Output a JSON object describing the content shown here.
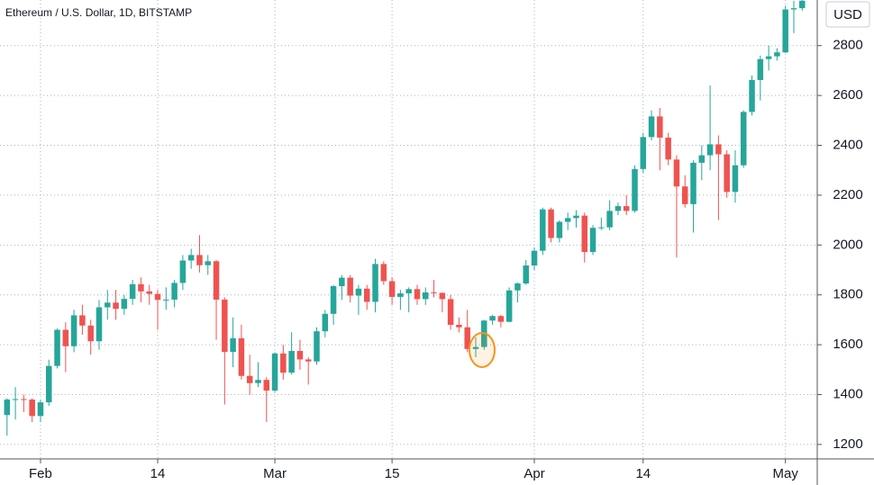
{
  "chart_data": {
    "type": "candlestick",
    "title": "Ethereum / U.S. Dollar, 1D, BITSTAMP",
    "currency": "USD",
    "up_color": "#26a69a",
    "down_color": "#ef5350",
    "grid": true,
    "xlim": [
      -4.84,
      92.8
    ],
    "ylim": [
      1142,
      2983
    ],
    "xticks": [
      {
        "value": 0,
        "label": "Feb"
      },
      14,
      {
        "value": 28,
        "label": "Mar"
      },
      {
        "value": 42,
        "label": "15"
      },
      {
        "value": 59,
        "label": "Apr"
      },
      {
        "value": 72,
        "label": "14"
      },
      {
        "value": 89,
        "label": "May"
      }
    ],
    "yticks": [
      1200,
      1400,
      1600,
      1800,
      2000,
      2200,
      2400,
      2600,
      2800
    ],
    "x": [
      -4,
      -3,
      -2,
      -1,
      0,
      1,
      2,
      3,
      4,
      5,
      6,
      7,
      8,
      9,
      10,
      11,
      12,
      13,
      14,
      15,
      16,
      17,
      18,
      19,
      20,
      21,
      22,
      23,
      24,
      25,
      26,
      27,
      28,
      29,
      30,
      31,
      32,
      33,
      34,
      35,
      36,
      37,
      38,
      39,
      40,
      41,
      42,
      43,
      44,
      45,
      46,
      47,
      48,
      49,
      50,
      51,
      52,
      53,
      54,
      55,
      56,
      57,
      58,
      59,
      60,
      61,
      62,
      63,
      64,
      65,
      66,
      67,
      68,
      69,
      70,
      71,
      72,
      73,
      74,
      75,
      76,
      77,
      78,
      79,
      80,
      81,
      82,
      83,
      84,
      85,
      86,
      87,
      88,
      89,
      90,
      91
    ],
    "open": [
      1318,
      1380,
      1382,
      1380,
      1314,
      1369,
      1515,
      1660,
      1594,
      1718,
      1677,
      1614,
      1750,
      1769,
      1744,
      1784,
      1843,
      1814,
      1804,
      1780,
      1781,
      1848,
      1938,
      1960,
      1919,
      1935,
      1781,
      1571,
      1626,
      1475,
      1446,
      1459,
      1416,
      1565,
      1488,
      1575,
      1541,
      1533,
      1654,
      1724,
      1835,
      1869,
      1797,
      1825,
      1772,
      1924,
      1855,
      1792,
      1806,
      1823,
      1783,
      1810,
      1808,
      1783,
      1680,
      1670,
      1583,
      1591,
      1697,
      1715,
      1692,
      1818,
      1846,
      1918,
      1977,
      2143,
      2028,
      2093,
      2108,
      2118,
      1972,
      2069,
      2071,
      2137,
      2156,
      2137,
      2305,
      2433,
      2516,
      2431,
      2343,
      2235,
      2164,
      2330,
      2360,
      2404,
      2364,
      2213,
      2320,
      2534,
      2662,
      2746,
      2757,
      2773,
      2945,
      2950
    ],
    "high": [
      1385,
      1430,
      1400,
      1385,
      1380,
      1540,
      1665,
      1690,
      1740,
      1760,
      1700,
      1780,
      1820,
      1820,
      1800,
      1860,
      1870,
      1840,
      1820,
      1830,
      1860,
      1960,
      1985,
      2040,
      1960,
      1940,
      1790,
      1710,
      1680,
      1560,
      1530,
      1470,
      1570,
      1600,
      1650,
      1620,
      1550,
      1670,
      1740,
      1840,
      1880,
      1880,
      1840,
      1840,
      1945,
      1935,
      1870,
      1820,
      1830,
      1840,
      1830,
      1860,
      1810,
      1800,
      1710,
      1740,
      1630,
      1700,
      1720,
      1720,
      1830,
      1850,
      1940,
      1990,
      2150,
      2150,
      2100,
      2130,
      2140,
      2130,
      2080,
      2110,
      2180,
      2170,
      2200,
      2320,
      2450,
      2540,
      2550,
      2450,
      2360,
      2280,
      2340,
      2400,
      2640,
      2440,
      2380,
      2380,
      2540,
      2680,
      2760,
      2800,
      2790,
      2960,
      2980,
      2990
    ],
    "low": [
      1235,
      1300,
      1330,
      1290,
      1290,
      1355,
      1505,
      1490,
      1570,
      1640,
      1560,
      1580,
      1700,
      1700,
      1720,
      1760,
      1770,
      1760,
      1660,
      1740,
      1750,
      1820,
      1905,
      1890,
      1880,
      1620,
      1360,
      1510,
      1460,
      1400,
      1430,
      1290,
      1410,
      1460,
      1480,
      1500,
      1440,
      1520,
      1630,
      1680,
      1780,
      1770,
      1720,
      1740,
      1730,
      1840,
      1760,
      1740,
      1730,
      1760,
      1760,
      1790,
      1730,
      1660,
      1650,
      1570,
      1550,
      1580,
      1680,
      1670,
      1690,
      1770,
      1840,
      1900,
      1960,
      2010,
      2010,
      2060,
      2070,
      1930,
      1960,
      2060,
      2060,
      2120,
      2120,
      2130,
      2290,
      2420,
      2300,
      2320,
      1950,
      2150,
      2050,
      2260,
      2300,
      2100,
      2190,
      2170,
      2310,
      2520,
      2580,
      2700,
      2740,
      2770,
      2850,
      2940
    ],
    "close": [
      1380,
      1382,
      1380,
      1314,
      1369,
      1515,
      1660,
      1594,
      1718,
      1677,
      1614,
      1750,
      1769,
      1744,
      1784,
      1843,
      1814,
      1804,
      1780,
      1781,
      1848,
      1938,
      1960,
      1919,
      1935,
      1781,
      1571,
      1626,
      1475,
      1446,
      1459,
      1416,
      1565,
      1488,
      1575,
      1541,
      1533,
      1654,
      1724,
      1835,
      1869,
      1797,
      1825,
      1772,
      1924,
      1855,
      1792,
      1806,
      1823,
      1783,
      1810,
      1808,
      1783,
      1680,
      1670,
      1583,
      1591,
      1697,
      1715,
      1692,
      1818,
      1846,
      1918,
      1977,
      2143,
      2028,
      2093,
      2108,
      2118,
      1972,
      2069,
      2071,
      2137,
      2156,
      2137,
      2305,
      2433,
      2516,
      2431,
      2343,
      2235,
      2164,
      2330,
      2360,
      2404,
      2364,
      2213,
      2320,
      2534,
      2662,
      2746,
      2757,
      2773,
      2945,
      2950,
      2980
    ]
  }
}
